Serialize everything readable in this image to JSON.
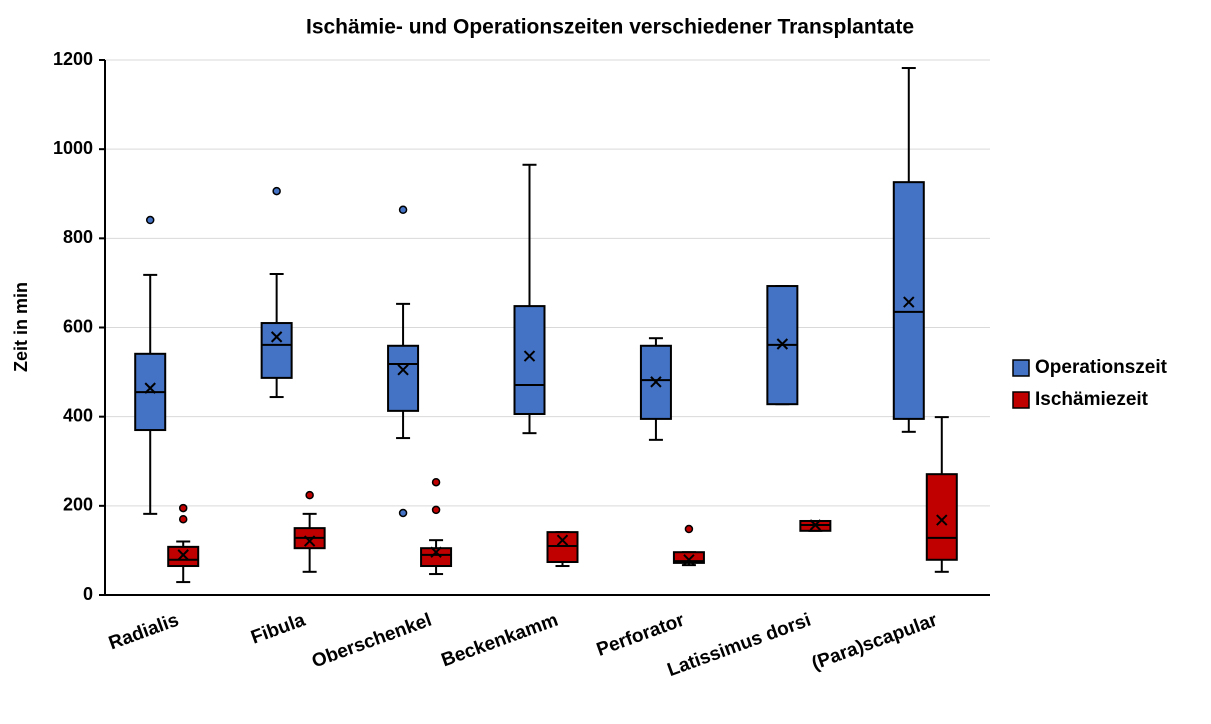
{
  "chart_data": {
    "type": "box",
    "title": "Ischämie- und Operationszeiten verschiedener Transplantate",
    "ylabel": "Zeit in min",
    "categories": [
      "Radialis",
      "Fibula",
      "Oberschenkel",
      "Beckenkamm",
      "Perforator",
      "Latissimus dorsi",
      "(Para)scapular"
    ],
    "ylim": [
      0,
      1200
    ],
    "yticks": [
      0,
      200,
      400,
      600,
      800,
      1000,
      1200
    ],
    "grid": true,
    "legend": "right",
    "series": [
      {
        "name": "Operationszeit",
        "color": "#4472c4",
        "values": [
          {
            "min": 182,
            "q1": 370,
            "median": 455,
            "q3": 541,
            "max": 718,
            "mean": 464,
            "outliers": [
              841
            ]
          },
          {
            "min": 444,
            "q1": 487,
            "median": 561,
            "q3": 610,
            "max": 720,
            "mean": 579,
            "outliers": [
              906
            ]
          },
          {
            "min": 352,
            "q1": 413,
            "median": 518,
            "q3": 559,
            "max": 653,
            "mean": 505,
            "outliers": [
              864,
              184
            ]
          },
          {
            "min": 363,
            "q1": 406,
            "median": 471,
            "q3": 648,
            "max": 965,
            "mean": 536,
            "outliers": []
          },
          {
            "min": 348,
            "q1": 395,
            "median": 482,
            "q3": 559,
            "max": 576,
            "mean": 478,
            "outliers": []
          },
          {
            "min": 428,
            "q1": 428,
            "median": 561,
            "q3": 693,
            "max": 693,
            "mean": 563,
            "outliers": []
          },
          {
            "min": 366,
            "q1": 395,
            "median": 635,
            "q3": 926,
            "max": 1182,
            "mean": 657,
            "outliers": []
          }
        ]
      },
      {
        "name": "Ischämiezeit",
        "color": "#c00000",
        "values": [
          {
            "min": 29,
            "q1": 65,
            "median": 79,
            "q3": 108,
            "max": 120,
            "mean": 90,
            "outliers": [
              195,
              170
            ]
          },
          {
            "min": 52,
            "q1": 105,
            "median": 128,
            "q3": 150,
            "max": 182,
            "mean": 121,
            "outliers": [
              224
            ]
          },
          {
            "min": 47,
            "q1": 65,
            "median": 90,
            "q3": 105,
            "max": 123,
            "mean": 96,
            "outliers": [
              253,
              191
            ]
          },
          {
            "min": 65,
            "q1": 74,
            "median": 110,
            "q3": 141,
            "max": 141,
            "mean": 123,
            "outliers": []
          },
          {
            "min": 67,
            "q1": 72,
            "median": 76,
            "q3": 96,
            "max": 96,
            "mean": 79,
            "outliers": [
              148
            ]
          },
          {
            "min": 144,
            "q1": 144,
            "median": 157,
            "q3": 166,
            "max": 166,
            "mean": 157,
            "outliers": []
          },
          {
            "min": 52,
            "q1": 79,
            "median": 128,
            "q3": 271,
            "max": 399,
            "mean": 168,
            "outliers": []
          }
        ]
      }
    ]
  }
}
